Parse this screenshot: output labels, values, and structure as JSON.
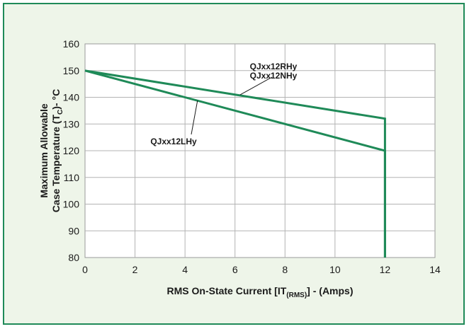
{
  "colors": {
    "frame": "#1f8a58",
    "background": "#eef5e9",
    "series": "#1f8a58",
    "grid": "#b3b3b3"
  },
  "chart_data": {
    "type": "line",
    "title": "",
    "xlabel": {
      "main": "RMS On-State Current [IT",
      "sub": "(RMS)",
      "tail": "] - (Amps)"
    },
    "ylabel": {
      "line1": "Maximum Allowable",
      "line2_main": "Case Temperature (T",
      "line2_sub": "C",
      "line2_tail": ")- °C"
    },
    "xlim": [
      0,
      14
    ],
    "ylim": [
      80,
      160
    ],
    "xticks": [
      0,
      2,
      4,
      6,
      8,
      10,
      12,
      14
    ],
    "yticks": [
      80,
      90,
      100,
      110,
      120,
      130,
      140,
      150,
      160
    ],
    "grid": true,
    "series": [
      {
        "name": "QJxx12RHy / QJxx12NHy",
        "x": [
          0,
          12,
          12
        ],
        "y": [
          150,
          132,
          80
        ]
      },
      {
        "name": "QJxx12LHy",
        "x": [
          0,
          12,
          12
        ],
        "y": [
          150,
          120,
          80
        ]
      }
    ],
    "annotations": [
      {
        "lines": [
          "QJxx12RHy",
          "QJxx12NHy"
        ],
        "series_index": 0,
        "point": [
          6.2,
          140.9
        ]
      },
      {
        "lines": [
          "QJxx12LHy"
        ],
        "series_index": 1,
        "point": [
          4.5,
          138.8
        ]
      }
    ]
  }
}
